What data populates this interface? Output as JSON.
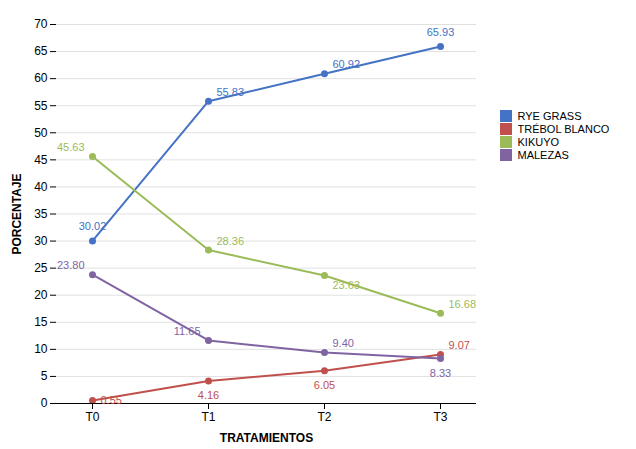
{
  "chart_data": {
    "type": "line",
    "categories": [
      "T0",
      "T1",
      "T2",
      "T3"
    ],
    "series": [
      {
        "name": "RYE GRASS",
        "color": "#4472C4",
        "marker": "circle",
        "values": [
          30.02,
          55.83,
          60.92,
          65.93
        ],
        "value_labels": [
          "30.02",
          "55.83",
          "60.92",
          "65.93"
        ]
      },
      {
        "name": "TRÉBOL BLANCO",
        "color": "#C0504D",
        "marker": "circle",
        "values": [
          0.55,
          4.16,
          6.05,
          9.07
        ],
        "value_labels": [
          "0.55",
          "4.16",
          "6.05",
          "9.07"
        ]
      },
      {
        "name": "KIKUYO",
        "color": "#9BBB59",
        "marker": "circle",
        "values": [
          45.63,
          28.36,
          23.63,
          16.68
        ],
        "value_labels": [
          "45.63",
          "28.36",
          "23.63",
          "16.68"
        ]
      },
      {
        "name": "MALEZAS",
        "color": "#8064A2",
        "marker": "circle",
        "values": [
          23.8,
          11.65,
          9.4,
          8.33
        ],
        "value_labels": [
          "23.80",
          "11.65",
          "9.40",
          "8.33"
        ]
      }
    ],
    "xlabel": "TRATAMIENTOS",
    "ylabel": "PORCENTAJE",
    "ylim": [
      0,
      70
    ],
    "yticks": [
      0,
      5,
      10,
      15,
      20,
      25,
      30,
      35,
      40,
      45,
      50,
      55,
      60,
      65,
      70
    ],
    "grid": true,
    "legend": "right",
    "data_labels": true
  }
}
